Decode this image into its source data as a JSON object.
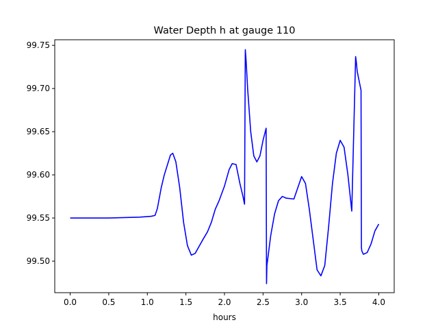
{
  "chart_data": {
    "type": "line",
    "title": "Water Depth h at gauge 110",
    "xlabel": "hours",
    "ylabel": "",
    "xlim": [
      -0.2,
      4.2
    ],
    "ylim": [
      99.4635,
      99.7565
    ],
    "xticks": [
      0.0,
      0.5,
      1.0,
      1.5,
      2.0,
      2.5,
      3.0,
      3.5,
      4.0
    ],
    "xtick_labels": [
      "0.0",
      "0.5",
      "1.0",
      "1.5",
      "2.0",
      "2.5",
      "3.0",
      "3.5",
      "4.0"
    ],
    "yticks": [
      99.5,
      99.55,
      99.6,
      99.65,
      99.7,
      99.75
    ],
    "ytick_labels": [
      "99.50",
      "99.55",
      "99.60",
      "99.65",
      "99.70",
      "99.75"
    ],
    "grid": false,
    "legend": "none",
    "series": [
      {
        "color": "#0000ff",
        "x": [
          0.0,
          0.5,
          0.9,
          1.05,
          1.1,
          1.13,
          1.18,
          1.22,
          1.3,
          1.33,
          1.37,
          1.42,
          1.47,
          1.52,
          1.57,
          1.62,
          1.67,
          1.72,
          1.78,
          1.83,
          1.88,
          1.93,
          2.0,
          2.06,
          2.1,
          2.15,
          2.2,
          2.24,
          2.26,
          2.27,
          2.28,
          2.3,
          2.34,
          2.38,
          2.42,
          2.46,
          2.5,
          2.54,
          2.545,
          2.55,
          2.6,
          2.65,
          2.7,
          2.75,
          2.8,
          2.9,
          2.95,
          3.0,
          3.05,
          3.1,
          3.15,
          3.2,
          3.25,
          3.3,
          3.35,
          3.4,
          3.45,
          3.5,
          3.55,
          3.6,
          3.65,
          3.7,
          3.71,
          3.72,
          3.77,
          3.775,
          3.78,
          3.8,
          3.85,
          3.9,
          3.95,
          4.0
        ],
        "y": [
          99.55,
          99.55,
          99.551,
          99.552,
          99.553,
          99.561,
          99.585,
          99.6,
          99.623,
          99.625,
          99.615,
          99.585,
          99.545,
          99.518,
          99.507,
          99.509,
          99.517,
          99.525,
          99.534,
          99.545,
          99.56,
          99.57,
          99.587,
          99.606,
          99.613,
          99.612,
          99.59,
          99.575,
          99.566,
          99.745,
          99.733,
          99.7,
          99.65,
          99.622,
          99.615,
          99.622,
          99.64,
          99.654,
          99.474,
          99.495,
          99.53,
          99.555,
          99.57,
          99.575,
          99.573,
          99.572,
          99.585,
          99.598,
          99.59,
          99.56,
          99.525,
          99.49,
          99.483,
          99.495,
          99.54,
          99.59,
          99.625,
          99.64,
          99.632,
          99.6,
          99.558,
          99.737,
          99.73,
          99.72,
          99.698,
          99.516,
          99.512,
          99.508,
          99.51,
          99.52,
          99.535,
          99.543
        ]
      }
    ]
  }
}
